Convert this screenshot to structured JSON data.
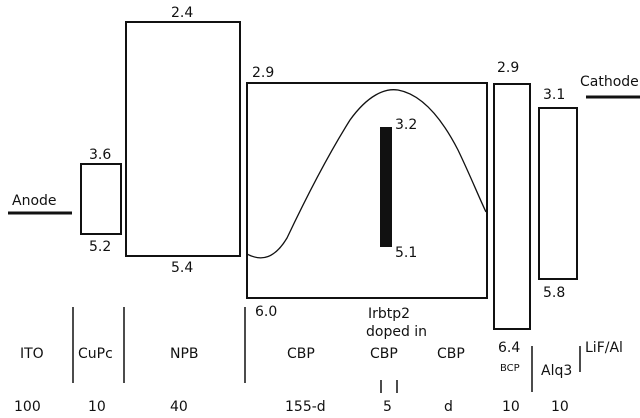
{
  "electrodes": {
    "anode": "Anode",
    "cathode": "Cathode"
  },
  "levels": {
    "cupc_lumo": "3.6",
    "cupc_homo": "5.2",
    "npb_lumo": "2.4",
    "npb_homo": "5.4",
    "cbp_lumo": "2.9",
    "cbp_homo": "6.0",
    "dopant_lumo": "3.2",
    "dopant_homo": "5.1",
    "bcp_lumo": "2.9",
    "bcp_homo": "6.4",
    "alq3_lumo": "3.1",
    "alq3_homo": "5.8"
  },
  "dopant": {
    "name": "Irbtp2",
    "note": "doped in"
  },
  "layers": [
    {
      "name": "ITO",
      "thickness": "100"
    },
    {
      "name": "CuPc",
      "thickness": "10"
    },
    {
      "name": "NPB",
      "thickness": "40"
    },
    {
      "name": "CBP",
      "thickness": "155-d"
    },
    {
      "name": "CBP",
      "thickness": "5"
    },
    {
      "name": "CBP",
      "thickness": "d"
    },
    {
      "name": "BCP",
      "thickness": "10"
    },
    {
      "name": "Alq3",
      "thickness": "10"
    },
    {
      "name": "LiF/Al",
      "thickness": ""
    }
  ],
  "colors": {
    "ink": "#111111",
    "background": "#ffffff"
  }
}
